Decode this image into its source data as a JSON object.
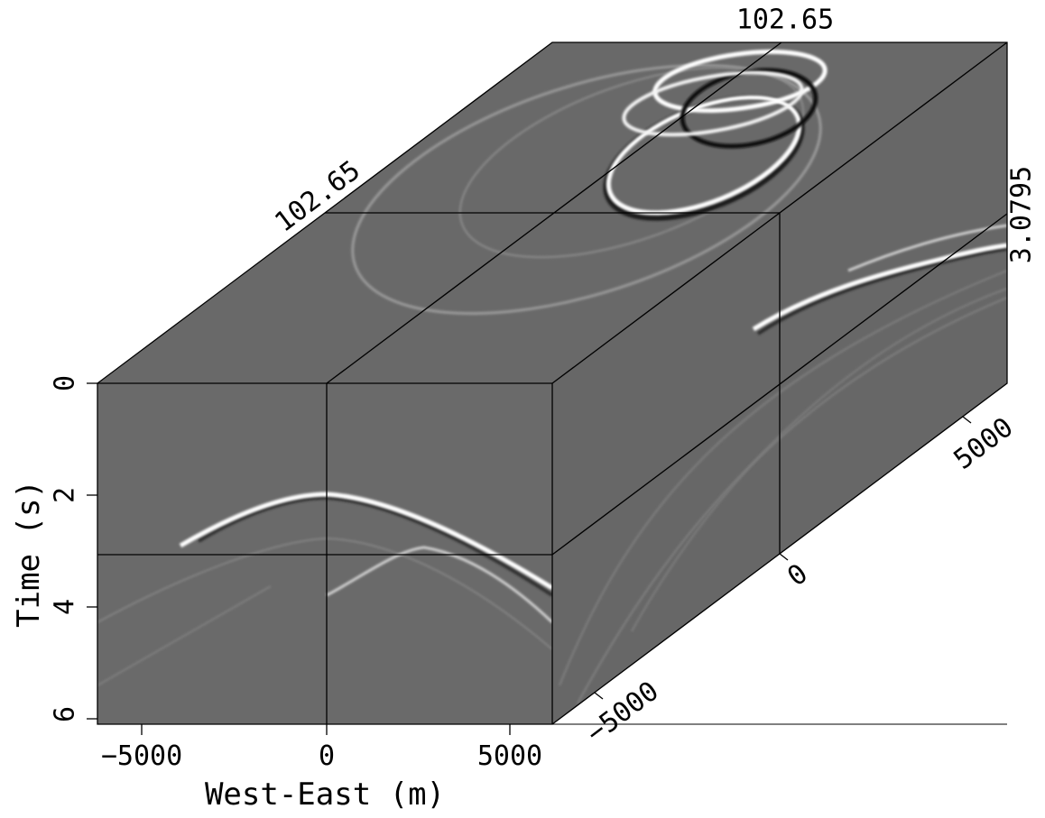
{
  "chart_data": {
    "type": "cube",
    "render": "3-D seismic data cube (grayscale wiggle-density)",
    "colors": {
      "background": "#ffffff",
      "panel": "#6a6a6a",
      "panel_shade_side": "#676767",
      "panel_shade_top": "#696969",
      "event_bright": "#ffffff",
      "event_dark": "#000000",
      "frame": "#000000"
    },
    "axes": {
      "time": {
        "label": "Time (s)",
        "range": [
          0,
          6.1
        ],
        "ticks": [
          0,
          2,
          4,
          6
        ],
        "tick_labels": [
          "0",
          "2",
          "4",
          "6"
        ]
      },
      "west_east": {
        "label": "West-East (m)",
        "range": [
          -6000,
          6000
        ],
        "ticks": [
          -5000,
          0,
          5000
        ],
        "tick_labels": [
          "−5000",
          "0",
          "5000"
        ]
      },
      "depth_axis": {
        "label": "",
        "range": [
          -6000,
          6000
        ],
        "ticks": [
          -5000,
          0,
          5000
        ],
        "tick_labels": [
          "−5000",
          "0",
          "5000"
        ]
      }
    },
    "slice_annotations": {
      "top_left": "102.65",
      "top_right": "102.65",
      "right_side": "3.0795"
    },
    "slice_positions": {
      "time_s": 3.0795,
      "west_east_m": 0,
      "depth_axis_m": 0
    },
    "events": {
      "front_face": [
        {
          "apex_x_m": 0,
          "apex_t_s": 2.0,
          "strength": 1.0
        },
        {
          "apex_x_m": 2500,
          "apex_t_s": 2.9,
          "strength": 0.6
        }
      ],
      "side_face": [
        {
          "note": "hyperbolic reflection rising toward the back",
          "strength": 1.0
        }
      ],
      "top_face": [
        {
          "note": "concentric elliptical time-slice rings",
          "strength": 1.0
        }
      ]
    }
  }
}
